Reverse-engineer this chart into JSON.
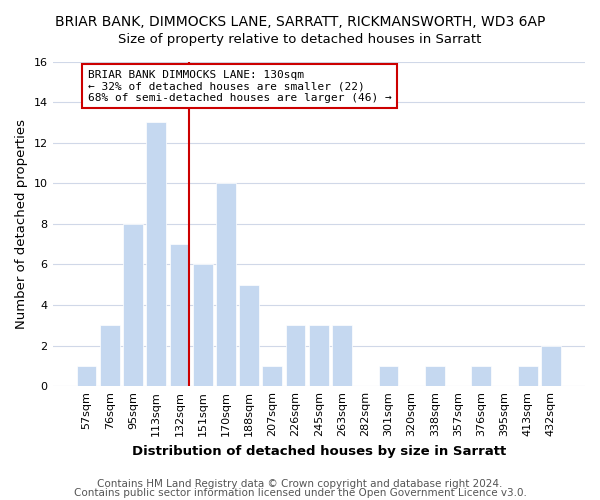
{
  "title": "BRIAR BANK, DIMMOCKS LANE, SARRATT, RICKMANSWORTH, WD3 6AP",
  "subtitle": "Size of property relative to detached houses in Sarratt",
  "xlabel": "Distribution of detached houses by size in Sarratt",
  "ylabel": "Number of detached properties",
  "categories": [
    "57sqm",
    "76sqm",
    "95sqm",
    "113sqm",
    "132sqm",
    "151sqm",
    "170sqm",
    "188sqm",
    "207sqm",
    "226sqm",
    "245sqm",
    "263sqm",
    "282sqm",
    "301sqm",
    "320sqm",
    "338sqm",
    "357sqm",
    "376sqm",
    "395sqm",
    "413sqm",
    "432sqm"
  ],
  "values": [
    1,
    3,
    8,
    13,
    7,
    6,
    10,
    5,
    1,
    3,
    3,
    3,
    0,
    1,
    0,
    1,
    0,
    1,
    0,
    1,
    2
  ],
  "bar_color": "#c5d8f0",
  "bar_edge_color": "#ffffff",
  "vline_color": "#cc0000",
  "annotation_title": "BRIAR BANK DIMMOCKS LANE: 130sqm",
  "annotation_line1": "← 32% of detached houses are smaller (22)",
  "annotation_line2": "68% of semi-detached houses are larger (46) →",
  "annotation_box_color": "#ffffff",
  "annotation_box_edge": "#cc0000",
  "ylim": [
    0,
    16
  ],
  "yticks": [
    0,
    2,
    4,
    6,
    8,
    10,
    12,
    14,
    16
  ],
  "footer1": "Contains HM Land Registry data © Crown copyright and database right 2024.",
  "footer2": "Contains public sector information licensed under the Open Government Licence v3.0.",
  "bg_color": "#ffffff",
  "plot_bg_color": "#ffffff",
  "grid_color": "#d0d8e8",
  "title_fontsize": 10,
  "subtitle_fontsize": 9.5,
  "axis_label_fontsize": 9.5,
  "tick_fontsize": 8,
  "footer_fontsize": 7.5
}
